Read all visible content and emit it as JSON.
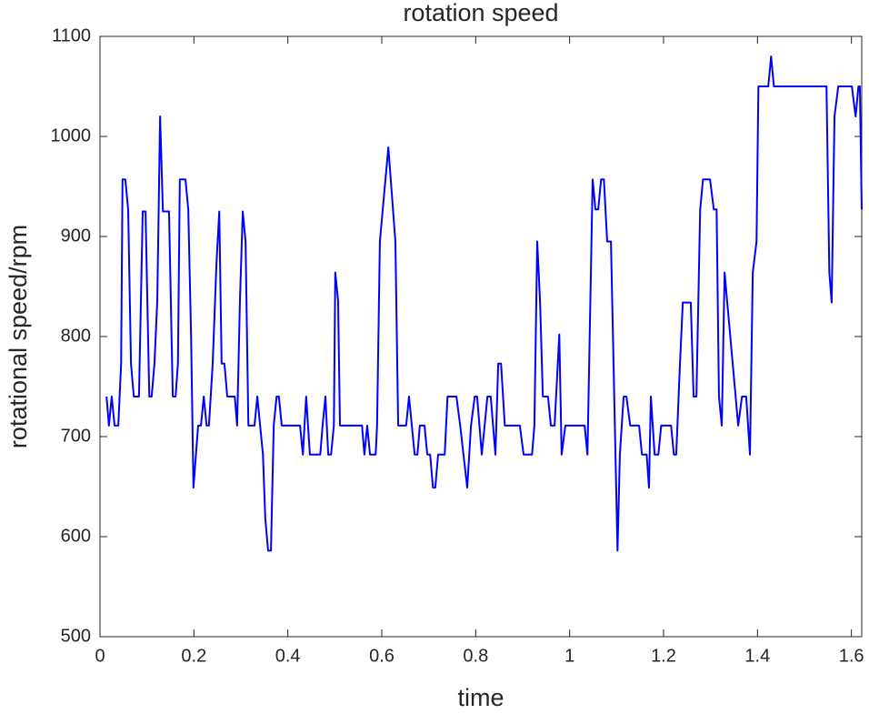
{
  "chart_data": {
    "type": "line",
    "title": "rotation speed",
    "x_label": "time",
    "y_label": "rotational speed/rpm",
    "color": "#0000ff",
    "xlim": [
      0,
      1.622
    ],
    "ylim": [
      500,
      1100
    ],
    "xticks": [
      0,
      0.2,
      0.4,
      0.6,
      0.8,
      1,
      1.2,
      1.4,
      1.6
    ],
    "yticks": [
      500,
      600,
      700,
      800,
      900,
      1000,
      1100
    ],
    "x": [
      0.014,
      0.019,
      0.025,
      0.031,
      0.039,
      0.045,
      0.048,
      0.054,
      0.06,
      0.066,
      0.072,
      0.083,
      0.091,
      0.097,
      0.105,
      0.11,
      0.116,
      0.122,
      0.128,
      0.134,
      0.147,
      0.155,
      0.161,
      0.166,
      0.17,
      0.182,
      0.188,
      0.194,
      0.199,
      0.209,
      0.215,
      0.221,
      0.227,
      0.232,
      0.24,
      0.248,
      0.254,
      0.259,
      0.265,
      0.271,
      0.287,
      0.292,
      0.298,
      0.304,
      0.31,
      0.316,
      0.329,
      0.335,
      0.341,
      0.347,
      0.352,
      0.358,
      0.364,
      0.37,
      0.376,
      0.381,
      0.387,
      0.426,
      0.432,
      0.439,
      0.447,
      0.469,
      0.474,
      0.48,
      0.486,
      0.492,
      0.498,
      0.501,
      0.507,
      0.511,
      0.558,
      0.563,
      0.569,
      0.575,
      0.587,
      0.59,
      0.596,
      0.614,
      0.629,
      0.635,
      0.652,
      0.658,
      0.664,
      0.67,
      0.676,
      0.681,
      0.691,
      0.697,
      0.703,
      0.709,
      0.714,
      0.72,
      0.734,
      0.74,
      0.759,
      0.767,
      0.774,
      0.782,
      0.79,
      0.798,
      0.803,
      0.813,
      0.825,
      0.832,
      0.842,
      0.848,
      0.854,
      0.862,
      0.894,
      0.902,
      0.92,
      0.925,
      0.931,
      0.937,
      0.943,
      0.954,
      0.96,
      0.968,
      0.978,
      0.983,
      0.991,
      1.032,
      1.038,
      1.049,
      1.055,
      1.061,
      1.067,
      1.073,
      1.08,
      1.088,
      1.102,
      1.107,
      1.115,
      1.121,
      1.129,
      1.148,
      1.154,
      1.164,
      1.169,
      1.173,
      1.181,
      1.189,
      1.195,
      1.216,
      1.222,
      1.227,
      1.235,
      1.241,
      1.258,
      1.264,
      1.27,
      1.278,
      1.284,
      1.299,
      1.307,
      1.313,
      1.318,
      1.324,
      1.33,
      1.359,
      1.367,
      1.376,
      1.384,
      1.39,
      1.398,
      1.402,
      1.423,
      1.429,
      1.435,
      1.547,
      1.553,
      1.558,
      1.564,
      1.572,
      1.601,
      1.609,
      1.615,
      1.618,
      1.622
    ],
    "values": [
      740,
      711,
      740,
      711,
      711,
      773,
      957,
      957,
      927,
      773,
      740,
      740,
      925,
      925,
      740,
      740,
      773,
      836,
      1020,
      925,
      925,
      740,
      740,
      773,
      957,
      957,
      927,
      800,
      649,
      711,
      711,
      740,
      711,
      711,
      773,
      873,
      925,
      773,
      773,
      740,
      740,
      711,
      836,
      925,
      895,
      711,
      711,
      740,
      711,
      682,
      618,
      586,
      586,
      711,
      740,
      740,
      711,
      711,
      682,
      740,
      682,
      682,
      711,
      740,
      682,
      682,
      711,
      864,
      836,
      711,
      711,
      682,
      711,
      682,
      682,
      711,
      895,
      989,
      895,
      711,
      711,
      740,
      711,
      682,
      682,
      711,
      711,
      682,
      682,
      649,
      649,
      682,
      682,
      740,
      740,
      711,
      682,
      649,
      711,
      740,
      740,
      682,
      740,
      740,
      682,
      773,
      773,
      711,
      711,
      682,
      682,
      711,
      895,
      836,
      740,
      740,
      711,
      711,
      802,
      682,
      711,
      711,
      682,
      957,
      927,
      927,
      957,
      957,
      895,
      895,
      586,
      682,
      740,
      740,
      711,
      711,
      682,
      682,
      649,
      740,
      682,
      682,
      711,
      711,
      682,
      682,
      773,
      834,
      834,
      740,
      740,
      927,
      957,
      957,
      927,
      927,
      740,
      711,
      864,
      711,
      740,
      740,
      682,
      864,
      895,
      1050,
      1050,
      1080,
      1050,
      1050,
      864,
      834,
      1020,
      1050,
      1050,
      1020,
      1050,
      1050,
      927
    ]
  }
}
